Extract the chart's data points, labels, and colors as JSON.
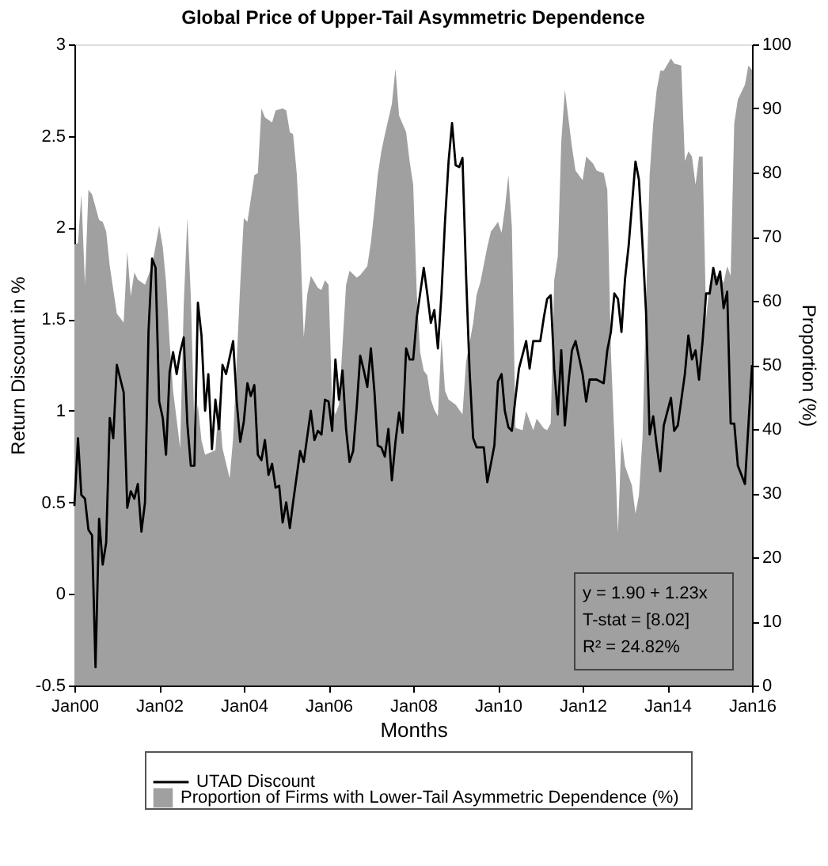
{
  "chart_data": {
    "type": "line",
    "title": "Global Price of Upper-Tail Asymmetric Dependence",
    "xlabel": "Months",
    "ylabel": "Return Discount in %",
    "y2label": "Proportion (%)",
    "xlim": [
      "2000-01",
      "2016-01"
    ],
    "xticks": [
      {
        "value": "2000-01",
        "label": "Jan00"
      },
      {
        "value": "2002-01",
        "label": "Jan02"
      },
      {
        "value": "2004-01",
        "label": "Jan04"
      },
      {
        "value": "2006-01",
        "label": "Jan06"
      },
      {
        "value": "2008-01",
        "label": "Jan08"
      },
      {
        "value": "2010-01",
        "label": "Jan10"
      },
      {
        "value": "2012-01",
        "label": "Jan12"
      },
      {
        "value": "2014-01",
        "label": "Jan14"
      },
      {
        "value": "2016-01",
        "label": "Jan16"
      }
    ],
    "ylim": [
      -0.5,
      3
    ],
    "yticks": [
      -0.5,
      0,
      0.5,
      1,
      1.5,
      2,
      2.5,
      3
    ],
    "y2lim": [
      0,
      100
    ],
    "y2ticks": [
      0,
      10,
      20,
      30,
      40,
      50,
      60,
      70,
      80,
      90,
      100
    ],
    "legend": "bottom",
    "annotations": [
      "y = 1.90 + 1.23x",
      "T-stat = [8.02]",
      "R² = 24.82%"
    ],
    "series": [
      {
        "name": "UTAD Discount",
        "type": "line",
        "color": "#000000",
        "x": [
          "2000-01",
          "2000-02",
          "2000-03",
          "2000-04",
          "2000-05",
          "2000-06",
          "2000-07",
          "2000-08",
          "2000-09",
          "2000-10",
          "2000-11",
          "2000-12",
          "2001-01",
          "2001-03",
          "2001-04",
          "2001-05",
          "2001-06",
          "2001-07",
          "2001-08",
          "2001-09",
          "2001-10",
          "2001-11",
          "2001-12",
          "2002-01",
          "2002-02",
          "2002-03",
          "2002-04",
          "2002-05",
          "2002-06",
          "2002-07",
          "2002-08",
          "2002-09",
          "2002-10",
          "2002-11",
          "2002-12",
          "2003-01",
          "2003-02",
          "2003-03",
          "2003-04",
          "2003-05",
          "2003-06",
          "2003-07",
          "2003-08",
          "2003-10",
          "2003-11",
          "2003-12",
          "2004-01",
          "2004-02",
          "2004-03",
          "2004-04",
          "2004-05",
          "2004-06",
          "2004-07",
          "2004-08",
          "2004-09",
          "2004-10",
          "2004-11",
          "2004-12",
          "2005-01",
          "2005-02",
          "2005-03",
          "2005-05",
          "2005-06",
          "2005-08",
          "2005-09",
          "2005-10",
          "2005-11",
          "2005-12",
          "2006-01",
          "2006-02",
          "2006-03",
          "2006-04",
          "2006-05",
          "2006-06",
          "2006-07",
          "2006-08",
          "2006-09",
          "2006-10",
          "2006-11",
          "2006-12",
          "2007-01",
          "2007-02",
          "2007-03",
          "2007-04",
          "2007-05",
          "2007-06",
          "2007-07",
          "2007-08",
          "2007-09",
          "2007-10",
          "2007-11",
          "2007-12",
          "2008-01",
          "2008-02",
          "2008-04",
          "2008-05",
          "2008-06",
          "2008-07",
          "2008-08",
          "2008-09",
          "2008-10",
          "2008-11",
          "2008-12",
          "2009-01",
          "2009-02",
          "2009-03",
          "2009-04",
          "2009-05",
          "2009-06",
          "2009-07",
          "2009-09",
          "2009-10",
          "2009-11",
          "2009-12",
          "2010-01",
          "2010-02",
          "2010-03",
          "2010-04",
          "2010-05",
          "2010-06",
          "2010-07",
          "2010-09",
          "2010-10",
          "2010-11",
          "2011-01",
          "2011-02",
          "2011-03",
          "2011-04",
          "2011-05",
          "2011-06",
          "2011-07",
          "2011-08",
          "2011-09",
          "2011-10",
          "2011-11",
          "2012-01",
          "2012-02",
          "2012-03",
          "2012-05",
          "2012-07",
          "2012-08",
          "2012-09",
          "2012-10",
          "2012-11",
          "2012-12",
          "2013-01",
          "2013-02",
          "2013-04",
          "2013-05",
          "2013-06",
          "2013-07",
          "2013-08",
          "2013-09",
          "2013-10",
          "2013-11",
          "2013-12",
          "2014-02",
          "2014-03",
          "2014-04",
          "2014-06",
          "2014-07",
          "2014-08",
          "2014-09",
          "2014-10",
          "2014-11",
          "2014-12",
          "2015-01",
          "2015-02",
          "2015-03",
          "2015-04",
          "2015-05",
          "2015-06",
          "2015-07",
          "2015-08",
          "2015-09",
          "2015-11",
          "2016-01"
        ],
        "values": [
          0.48,
          0.85,
          0.54,
          0.52,
          0.35,
          0.32,
          -0.4,
          0.41,
          0.16,
          0.28,
          0.96,
          0.85,
          1.25,
          1.1,
          0.47,
          0.56,
          0.52,
          0.6,
          0.34,
          0.5,
          1.43,
          1.83,
          1.78,
          1.05,
          0.96,
          0.76,
          1.21,
          1.32,
          1.2,
          1.32,
          1.4,
          0.93,
          0.7,
          0.7,
          1.59,
          1.41,
          1.0,
          1.2,
          0.79,
          1.06,
          0.9,
          1.25,
          1.2,
          1.38,
          1.05,
          0.83,
          0.94,
          1.15,
          1.08,
          1.14,
          0.76,
          0.73,
          0.84,
          0.65,
          0.71,
          0.58,
          0.59,
          0.39,
          0.5,
          0.36,
          0.5,
          0.78,
          0.72,
          1.0,
          0.84,
          0.89,
          0.87,
          1.06,
          1.05,
          0.89,
          1.28,
          1.06,
          1.22,
          0.9,
          0.72,
          0.78,
          1.02,
          1.3,
          1.22,
          1.13,
          1.34,
          1.1,
          0.81,
          0.8,
          0.75,
          0.9,
          0.62,
          0.83,
          0.99,
          0.88,
          1.34,
          1.28,
          1.28,
          1.51,
          1.78,
          1.64,
          1.48,
          1.55,
          1.34,
          1.64,
          2.03,
          2.36,
          2.57,
          2.34,
          2.33,
          2.38,
          1.74,
          1.22,
          0.85,
          0.8,
          0.8,
          0.61,
          0.71,
          0.81,
          1.16,
          1.2,
          1.0,
          0.91,
          0.89,
          1.07,
          1.23,
          1.38,
          1.23,
          1.38,
          1.38,
          1.51,
          1.61,
          1.63,
          1.23,
          0.98,
          1.33,
          0.92,
          1.15,
          1.33,
          1.38,
          1.2,
          1.05,
          1.17,
          1.17,
          1.15,
          1.33,
          1.43,
          1.64,
          1.61,
          1.43,
          1.72,
          1.9,
          2.36,
          2.26,
          1.9,
          1.54,
          0.87,
          0.97,
          0.81,
          0.67,
          0.92,
          1.07,
          0.89,
          0.92,
          1.2,
          1.41,
          1.28,
          1.33,
          1.17,
          1.38,
          1.64,
          1.64,
          1.78,
          1.69,
          1.76,
          1.56,
          1.65,
          0.93,
          0.93,
          0.7,
          0.6,
          1.25
        ]
      },
      {
        "name": "Proportion of Firms with Lower-Tail Asymmetric Dependence (%)",
        "type": "area",
        "axis": "y2",
        "color": "#a0a0a0",
        "x": [
          "2000-01",
          "2000-02",
          "2000-03",
          "2000-04",
          "2000-05",
          "2000-06",
          "2000-08",
          "2000-09",
          "2000-10",
          "2000-11",
          "2001-01",
          "2001-03",
          "2001-04",
          "2001-05",
          "2001-06",
          "2001-07",
          "2001-09",
          "2001-10",
          "2001-11",
          "2002-01",
          "2002-02",
          "2002-03",
          "2002-04",
          "2002-05",
          "2002-07",
          "2002-08",
          "2002-09",
          "2002-10",
          "2002-11",
          "2002-12",
          "2003-01",
          "2003-02",
          "2003-05",
          "2003-06",
          "2003-07",
          "2003-09",
          "2003-10",
          "2003-12",
          "2004-01",
          "2004-02",
          "2004-04",
          "2004-05",
          "2004-06",
          "2004-07",
          "2004-09",
          "2004-10",
          "2004-12",
          "2005-01",
          "2005-02",
          "2005-03",
          "2005-04",
          "2005-05",
          "2005-06",
          "2005-07",
          "2005-08",
          "2005-10",
          "2005-11",
          "2005-12",
          "2006-01",
          "2006-02",
          "2006-03",
          "2006-04",
          "2006-06",
          "2006-07",
          "2006-09",
          "2006-10",
          "2006-12",
          "2007-01",
          "2007-02",
          "2007-03",
          "2007-04",
          "2007-05",
          "2007-07",
          "2007-08",
          "2007-09",
          "2007-11",
          "2007-12",
          "2008-01",
          "2008-02",
          "2008-03",
          "2008-04",
          "2008-05",
          "2008-06",
          "2008-07",
          "2008-08",
          "2008-09",
          "2008-10",
          "2008-11",
          "2009-01",
          "2009-02",
          "2009-03",
          "2009-04",
          "2009-06",
          "2009-07",
          "2009-08",
          "2009-10",
          "2009-11",
          "2009-12",
          "2010-01",
          "2010-02",
          "2010-03",
          "2010-04",
          "2010-05",
          "2010-06",
          "2010-08",
          "2010-09",
          "2010-11",
          "2010-12",
          "2011-02",
          "2011-03",
          "2011-04",
          "2011-05",
          "2011-06",
          "2011-07",
          "2011-08",
          "2011-10",
          "2011-11",
          "2012-01",
          "2012-02",
          "2012-04",
          "2012-05",
          "2012-07",
          "2012-08",
          "2012-09",
          "2012-10",
          "2012-11",
          "2012-12",
          "2013-01",
          "2013-03",
          "2013-04",
          "2013-05",
          "2013-06",
          "2013-07",
          "2013-08",
          "2013-09",
          "2013-10",
          "2013-11",
          "2013-12",
          "2014-02",
          "2014-03",
          "2014-05",
          "2014-06",
          "2014-07",
          "2014-08",
          "2014-09",
          "2014-10",
          "2014-11",
          "2014-12",
          "2015-01",
          "2015-02",
          "2015-04",
          "2015-05",
          "2015-06",
          "2015-07",
          "2015-08",
          "2015-09",
          "2015-11",
          "2015-12",
          "2016-01"
        ],
        "values": [
          68.8,
          69,
          76.6,
          62.5,
          77.3,
          76.6,
          72.6,
          72.3,
          70.8,
          65.4,
          58,
          56.6,
          67.7,
          60.7,
          64.4,
          63.3,
          62.5,
          64,
          65.5,
          71.7,
          68.4,
          63,
          53.6,
          46,
          37,
          59.4,
          72.9,
          60.7,
          40,
          43.8,
          38.2,
          36,
          36.7,
          44.5,
          37,
          32.3,
          38.6,
          62.5,
          72.9,
          72.3,
          79.6,
          79.9,
          90,
          88.6,
          87.8,
          89.7,
          90,
          89.7,
          86.3,
          86,
          80,
          70,
          54.3,
          61,
          63.9,
          62,
          61.7,
          63.2,
          62.5,
          43.8,
          42.3,
          43.8,
          62.5,
          64.7,
          63.6,
          64,
          65.4,
          69.1,
          74.3,
          79.6,
          83.3,
          85.9,
          90.7,
          96.2,
          88.9,
          86.3,
          81.8,
          78.1,
          61,
          52,
          49.1,
          48.4,
          44.6,
          43,
          42,
          54.3,
          46,
          44.6,
          43.8,
          43,
          42.3,
          50.5,
          56.5,
          61,
          62.8,
          68.4,
          70.8,
          71.5,
          72.3,
          70.6,
          74.3,
          79.6,
          71.5,
          40.2,
          39.8,
          42.8,
          39.8,
          41.6,
          40.1,
          39.8,
          40.9,
          63.2,
          66.9,
          84.8,
          92.9,
          84,
          80.3,
          78.8,
          82.5,
          81.4,
          80.3,
          79.9,
          77.3,
          52,
          38.7,
          23.8,
          38.7,
          34.2,
          31.2,
          26.8,
          29.7,
          38.7,
          59.5,
          79.6,
          87.7,
          92.9,
          95.9,
          95.9,
          97.8,
          97,
          96.7,
          81.8,
          83.3,
          82.5,
          78.1,
          82.5,
          82.5,
          57.2,
          62.5,
          63.9,
          63.9,
          62.8,
          65.4,
          63.9,
          87.7,
          91.4,
          93.7,
          96.7,
          96
        ]
      }
    ]
  }
}
